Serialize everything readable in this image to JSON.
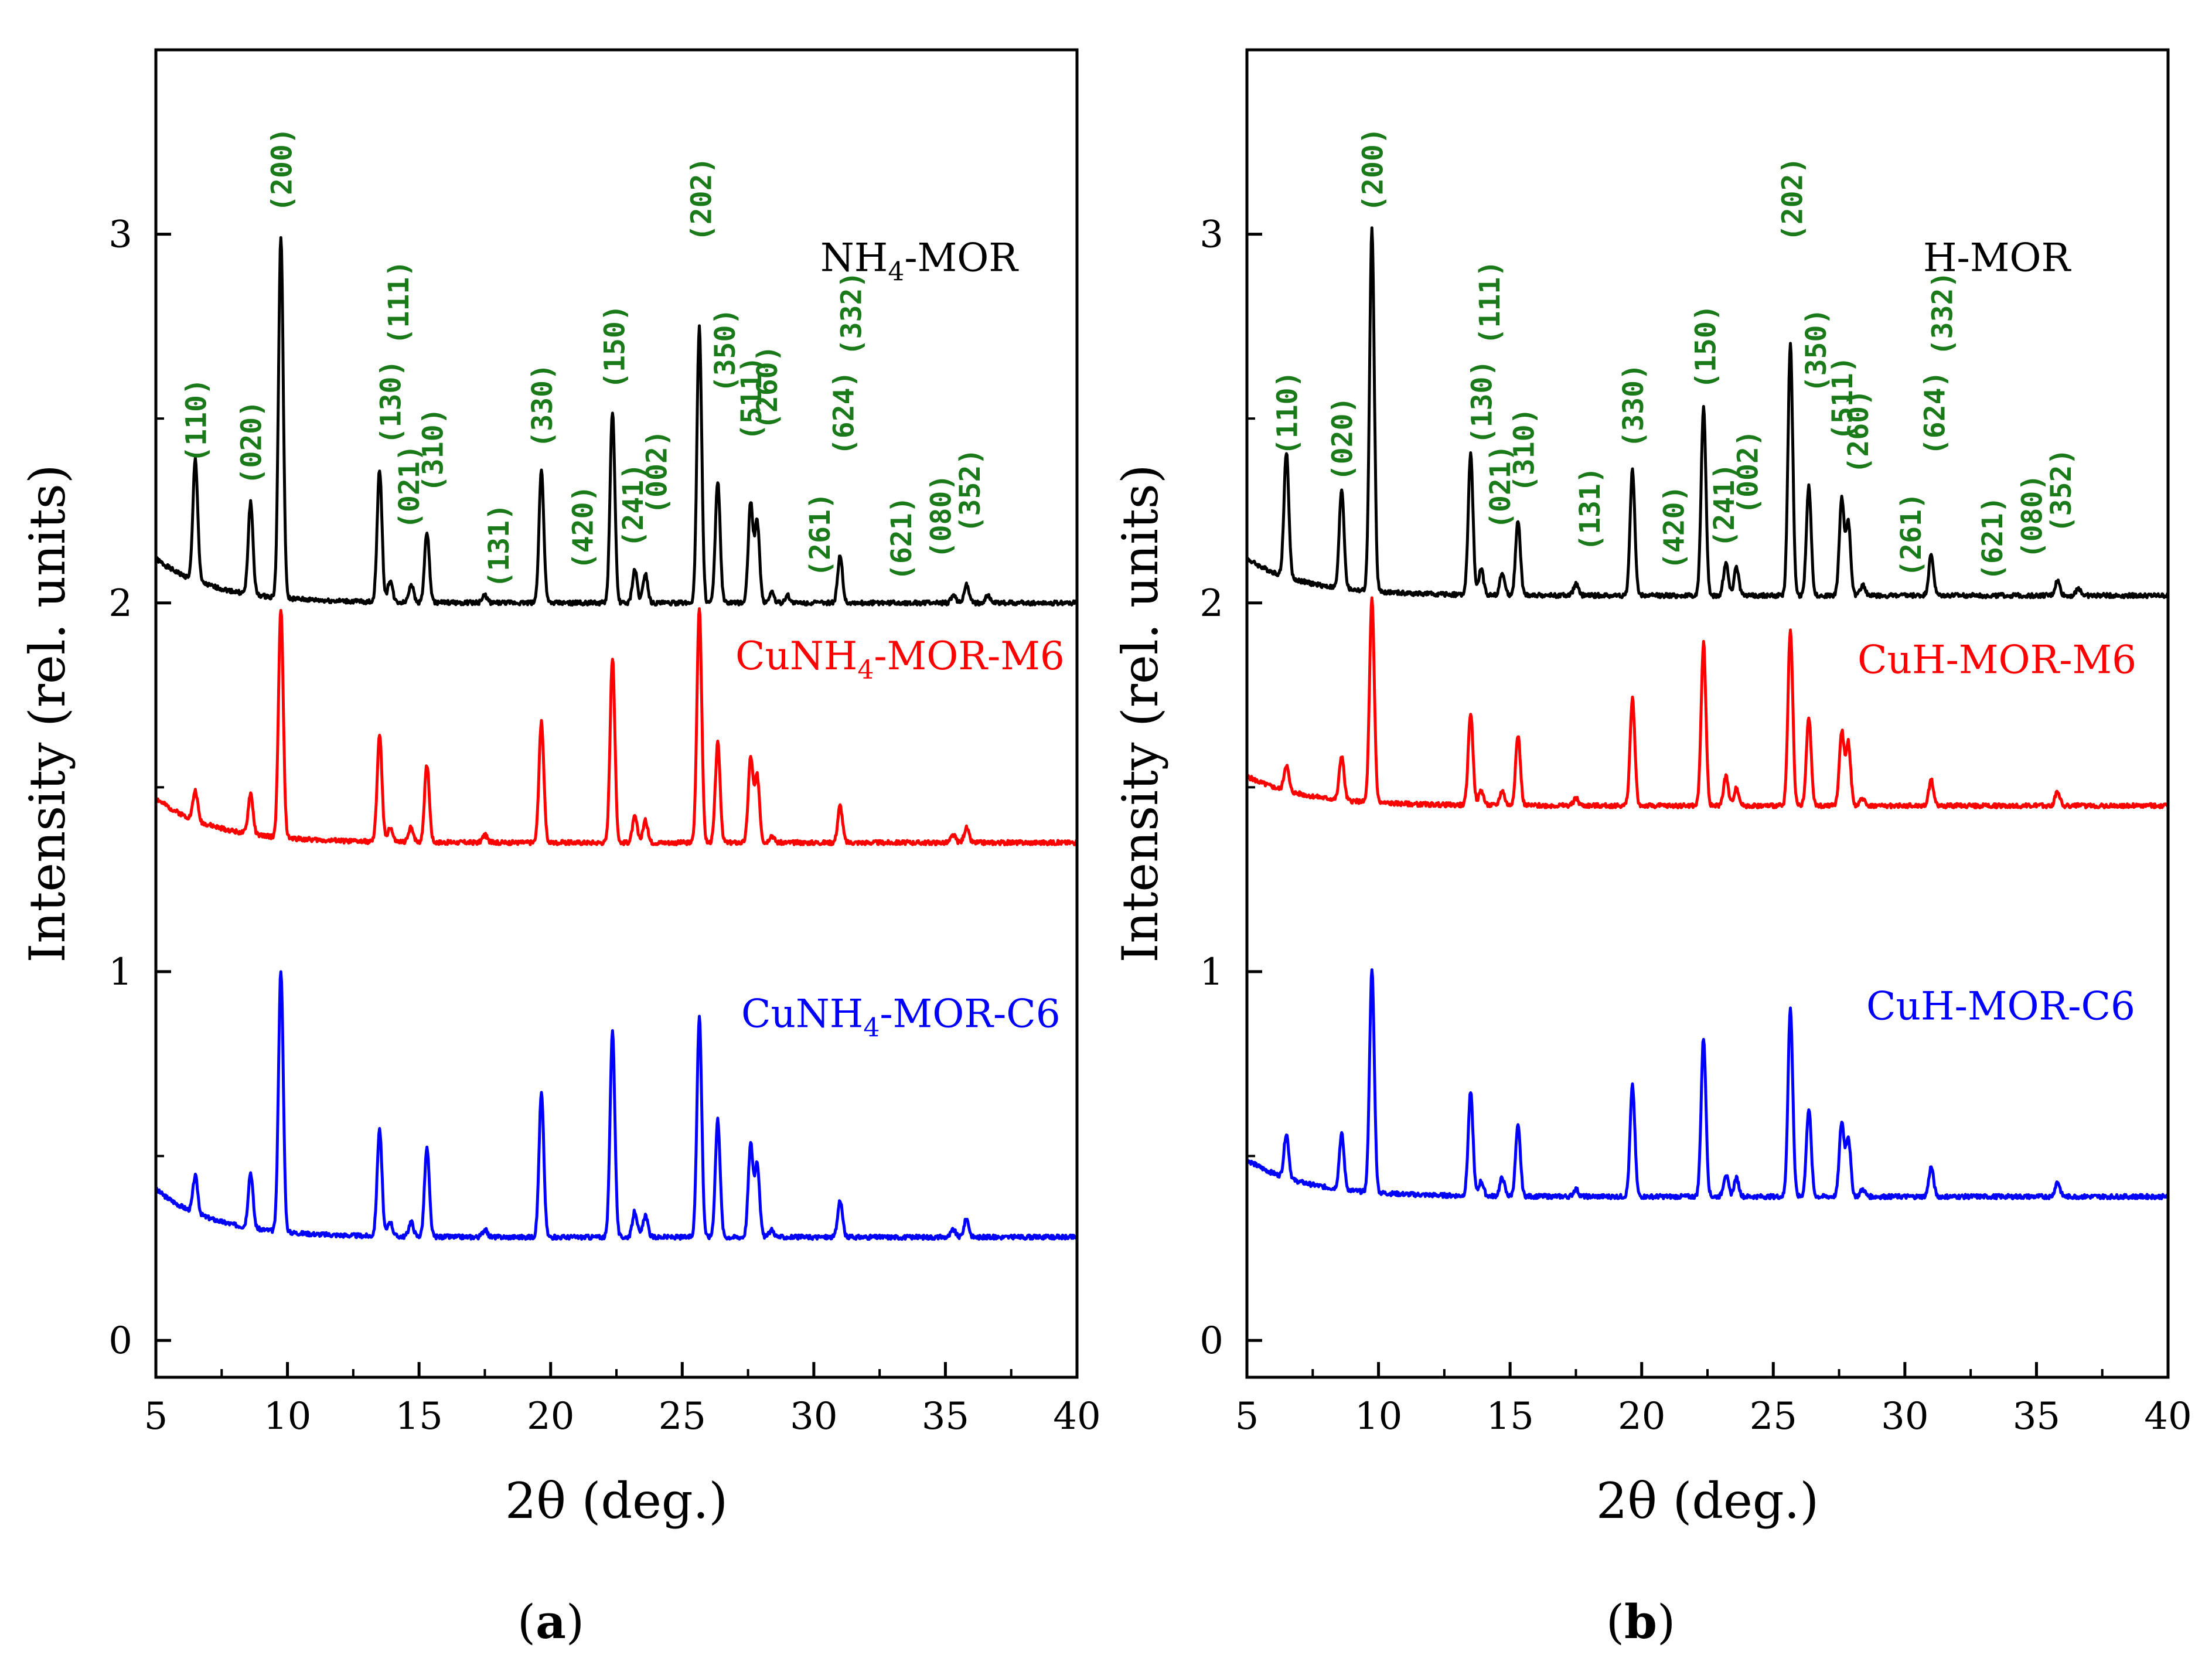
{
  "chart_data": [
    {
      "panel_label": "a",
      "type": "line",
      "xlabel": "2θ (deg.)",
      "ylabel": "Intensity (rel. units)",
      "xlim": [
        5,
        40
      ],
      "ylim": [
        -0.1,
        3.5
      ],
      "xticks": [
        5,
        10,
        15,
        20,
        25,
        30,
        35,
        40
      ],
      "yticks": [
        0,
        1,
        2,
        3
      ],
      "series": [
        {
          "name": "NH4-MOR",
          "label_main": "NH",
          "label_sub": "4",
          "label_tail": "-MOR",
          "color": "#000000",
          "baseline": 2.0,
          "offset": 2.0,
          "start_bump": 0.12,
          "noise_seed": 1,
          "peaks": [
            [
              6.5,
              0.33
            ],
            [
              8.6,
              0.25
            ],
            [
              9.75,
              0.98
            ],
            [
              13.5,
              0.36
            ],
            [
              13.9,
              0.06
            ],
            [
              14.7,
              0.05
            ],
            [
              15.3,
              0.19
            ],
            [
              17.5,
              0.02
            ],
            [
              19.65,
              0.36
            ],
            [
              22.35,
              0.52
            ],
            [
              23.2,
              0.09
            ],
            [
              23.6,
              0.08
            ],
            [
              25.65,
              0.75
            ],
            [
              26.35,
              0.33
            ],
            [
              27.6,
              0.27
            ],
            [
              27.85,
              0.22
            ],
            [
              28.4,
              0.03
            ],
            [
              29.0,
              0.02
            ],
            [
              31.0,
              0.13
            ],
            [
              35.3,
              0.02
            ],
            [
              35.8,
              0.05
            ],
            [
              36.6,
              0.02
            ]
          ]
        },
        {
          "name": "CuNH4-MOR-M6",
          "label_main": "CuNH",
          "label_sub": "4",
          "label_tail": "-MOR-M6",
          "color": "#ff0000",
          "baseline": 1.35,
          "offset": 1.35,
          "start_bump": 0.12,
          "noise_seed": 2,
          "peaks": [
            [
              6.5,
              0.08
            ],
            [
              8.6,
              0.11
            ],
            [
              9.75,
              0.62
            ],
            [
              13.5,
              0.29
            ],
            [
              13.9,
              0.04
            ],
            [
              14.7,
              0.04
            ],
            [
              15.3,
              0.21
            ],
            [
              17.5,
              0.02
            ],
            [
              19.65,
              0.33
            ],
            [
              22.35,
              0.5
            ],
            [
              23.2,
              0.07
            ],
            [
              23.6,
              0.06
            ],
            [
              25.65,
              0.64
            ],
            [
              26.35,
              0.27
            ],
            [
              27.6,
              0.23
            ],
            [
              27.85,
              0.18
            ],
            [
              28.4,
              0.02
            ],
            [
              31.0,
              0.1
            ],
            [
              35.3,
              0.02
            ],
            [
              35.8,
              0.04
            ]
          ]
        },
        {
          "name": "CuNH4-MOR-C6",
          "label_main": "CuNH",
          "label_sub": "4",
          "label_tail": "-MOR-C6",
          "color": "#0000ff",
          "baseline": 0.28,
          "offset": 0.28,
          "start_bump": 0.13,
          "noise_seed": 3,
          "peaks": [
            [
              6.5,
              0.1
            ],
            [
              8.6,
              0.15
            ],
            [
              9.75,
              0.71
            ],
            [
              13.5,
              0.29
            ],
            [
              13.9,
              0.04
            ],
            [
              14.7,
              0.04
            ],
            [
              15.3,
              0.24
            ],
            [
              17.5,
              0.02
            ],
            [
              19.65,
              0.39
            ],
            [
              22.35,
              0.56
            ],
            [
              23.2,
              0.07
            ],
            [
              23.6,
              0.06
            ],
            [
              25.65,
              0.6
            ],
            [
              26.35,
              0.32
            ],
            [
              27.6,
              0.25
            ],
            [
              27.85,
              0.2
            ],
            [
              28.4,
              0.02
            ],
            [
              31.0,
              0.1
            ],
            [
              35.3,
              0.02
            ],
            [
              35.8,
              0.05
            ]
          ]
        }
      ],
      "miller_indices": [
        {
          "label": "(110)",
          "x": 6.5,
          "y": 2.38
        },
        {
          "label": "(020)",
          "x": 8.6,
          "y": 2.32
        },
        {
          "label": "(200)",
          "x": 9.75,
          "y": 3.06
        },
        {
          "label": "(111)",
          "x": 14.2,
          "y": 2.7
        },
        {
          "label": "(130)",
          "x": 13.9,
          "y": 2.43
        },
        {
          "label": "(021)",
          "x": 14.6,
          "y": 2.2
        },
        {
          "label": "(310)",
          "x": 15.5,
          "y": 2.3
        },
        {
          "label": "(131)",
          "x": 18.0,
          "y": 2.04
        },
        {
          "label": "(330)",
          "x": 19.65,
          "y": 2.42
        },
        {
          "label": "(420)",
          "x": 21.2,
          "y": 2.09
        },
        {
          "label": "(150)",
          "x": 22.4,
          "y": 2.58
        },
        {
          "label": "(241)",
          "x": 23.1,
          "y": 2.15
        },
        {
          "label": "(002)",
          "x": 24.0,
          "y": 2.24
        },
        {
          "label": "(202)",
          "x": 25.7,
          "y": 2.98
        },
        {
          "label": "(350)",
          "x": 26.6,
          "y": 2.57
        },
        {
          "label": "(511)",
          "x": 27.6,
          "y": 2.44
        },
        {
          "label": "(260)",
          "x": 28.2,
          "y": 2.47
        },
        {
          "label": "(261)",
          "x": 30.2,
          "y": 2.07
        },
        {
          "label": "(624)",
          "x": 31.1,
          "y": 2.4
        },
        {
          "label": "(332)",
          "x": 31.4,
          "y": 2.67
        },
        {
          "label": "(621)",
          "x": 33.3,
          "y": 2.06
        },
        {
          "label": "(080)",
          "x": 34.8,
          "y": 2.12
        },
        {
          "label": "(352)",
          "x": 35.9,
          "y": 2.19
        }
      ]
    },
    {
      "panel_label": "b",
      "type": "line",
      "xlabel": "2θ (deg.)",
      "ylabel": "Intensity (rel. units)",
      "xlim": [
        5,
        40
      ],
      "ylim": [
        -0.1,
        3.5
      ],
      "xticks": [
        5,
        10,
        15,
        20,
        25,
        30,
        35,
        40
      ],
      "yticks": [
        0,
        1,
        2,
        3
      ],
      "series": [
        {
          "name": "H-MOR",
          "label_main": "H-MOR",
          "label_sub": "",
          "label_tail": "",
          "color": "#000000",
          "baseline": 2.02,
          "offset": 2.02,
          "start_bump": 0.1,
          "noise_seed": 4,
          "peaks": [
            [
              6.5,
              0.34
            ],
            [
              8.6,
              0.27
            ],
            [
              9.75,
              0.98
            ],
            [
              13.5,
              0.38
            ],
            [
              13.9,
              0.07
            ],
            [
              14.7,
              0.06
            ],
            [
              15.3,
              0.2
            ],
            [
              17.5,
              0.03
            ],
            [
              19.65,
              0.34
            ],
            [
              22.35,
              0.51
            ],
            [
              23.2,
              0.09
            ],
            [
              23.6,
              0.08
            ],
            [
              25.65,
              0.68
            ],
            [
              26.35,
              0.3
            ],
            [
              27.6,
              0.26
            ],
            [
              27.85,
              0.2
            ],
            [
              28.4,
              0.03
            ],
            [
              31.0,
              0.11
            ],
            [
              35.8,
              0.04
            ],
            [
              36.6,
              0.02
            ]
          ]
        },
        {
          "name": "CuH-MOR-M6",
          "label_main": "CuH-MOR-M6",
          "label_sub": "",
          "label_tail": "",
          "color": "#ff0000",
          "baseline": 1.45,
          "offset": 1.45,
          "start_bump": 0.08,
          "noise_seed": 5,
          "peaks": [
            [
              6.5,
              0.07
            ],
            [
              8.6,
              0.12
            ],
            [
              9.75,
              0.55
            ],
            [
              13.5,
              0.25
            ],
            [
              13.9,
              0.04
            ],
            [
              14.7,
              0.04
            ],
            [
              15.3,
              0.19
            ],
            [
              17.5,
              0.02
            ],
            [
              19.65,
              0.29
            ],
            [
              22.35,
              0.44
            ],
            [
              23.2,
              0.08
            ],
            [
              23.6,
              0.05
            ],
            [
              25.65,
              0.48
            ],
            [
              26.35,
              0.24
            ],
            [
              27.6,
              0.2
            ],
            [
              27.85,
              0.17
            ],
            [
              28.4,
              0.02
            ],
            [
              31.0,
              0.07
            ],
            [
              35.8,
              0.04
            ]
          ]
        },
        {
          "name": "CuH-MOR-C6",
          "label_main": "CuH-MOR-C6",
          "label_sub": "",
          "label_tail": "",
          "color": "#0000ff",
          "baseline": 0.39,
          "offset": 0.39,
          "start_bump": 0.1,
          "noise_seed": 6,
          "peaks": [
            [
              6.5,
              0.12
            ],
            [
              8.6,
              0.15
            ],
            [
              9.75,
              0.6
            ],
            [
              13.5,
              0.28
            ],
            [
              13.9,
              0.04
            ],
            [
              14.7,
              0.05
            ],
            [
              15.3,
              0.19
            ],
            [
              17.5,
              0.02
            ],
            [
              19.65,
              0.3
            ],
            [
              22.35,
              0.43
            ],
            [
              23.2,
              0.06
            ],
            [
              23.6,
              0.05
            ],
            [
              25.65,
              0.51
            ],
            [
              26.35,
              0.24
            ],
            [
              27.6,
              0.2
            ],
            [
              27.85,
              0.16
            ],
            [
              28.4,
              0.02
            ],
            [
              31.0,
              0.08
            ],
            [
              35.8,
              0.04
            ]
          ]
        }
      ],
      "miller_indices": [
        {
          "label": "(110)",
          "x": 6.5,
          "y": 2.4
        },
        {
          "label": "(020)",
          "x": 8.6,
          "y": 2.33
        },
        {
          "label": "(200)",
          "x": 9.75,
          "y": 3.06
        },
        {
          "label": "(111)",
          "x": 14.2,
          "y": 2.7
        },
        {
          "label": "(130)",
          "x": 13.9,
          "y": 2.43
        },
        {
          "label": "(021)",
          "x": 14.6,
          "y": 2.2
        },
        {
          "label": "(310)",
          "x": 15.5,
          "y": 2.3
        },
        {
          "label": "(131)",
          "x": 18.0,
          "y": 2.14
        },
        {
          "label": "(330)",
          "x": 19.65,
          "y": 2.42
        },
        {
          "label": "(420)",
          "x": 21.2,
          "y": 2.09
        },
        {
          "label": "(150)",
          "x": 22.4,
          "y": 2.58
        },
        {
          "label": "(241)",
          "x": 23.1,
          "y": 2.15
        },
        {
          "label": "(002)",
          "x": 24.0,
          "y": 2.24
        },
        {
          "label": "(202)",
          "x": 25.7,
          "y": 2.98
        },
        {
          "label": "(350)",
          "x": 26.6,
          "y": 2.57
        },
        {
          "label": "(511)",
          "x": 27.6,
          "y": 2.44
        },
        {
          "label": "(260)",
          "x": 28.2,
          "y": 2.35
        },
        {
          "label": "(261)",
          "x": 30.2,
          "y": 2.07
        },
        {
          "label": "(624)",
          "x": 31.1,
          "y": 2.4
        },
        {
          "label": "(332)",
          "x": 31.4,
          "y": 2.67
        },
        {
          "label": "(621)",
          "x": 33.3,
          "y": 2.06
        },
        {
          "label": "(080)",
          "x": 34.8,
          "y": 2.12
        },
        {
          "label": "(352)",
          "x": 35.9,
          "y": 2.19
        }
      ]
    }
  ],
  "colors": {
    "hkl_label": "#1a7a1a",
    "axis": "#000000",
    "background": "#ffffff"
  }
}
